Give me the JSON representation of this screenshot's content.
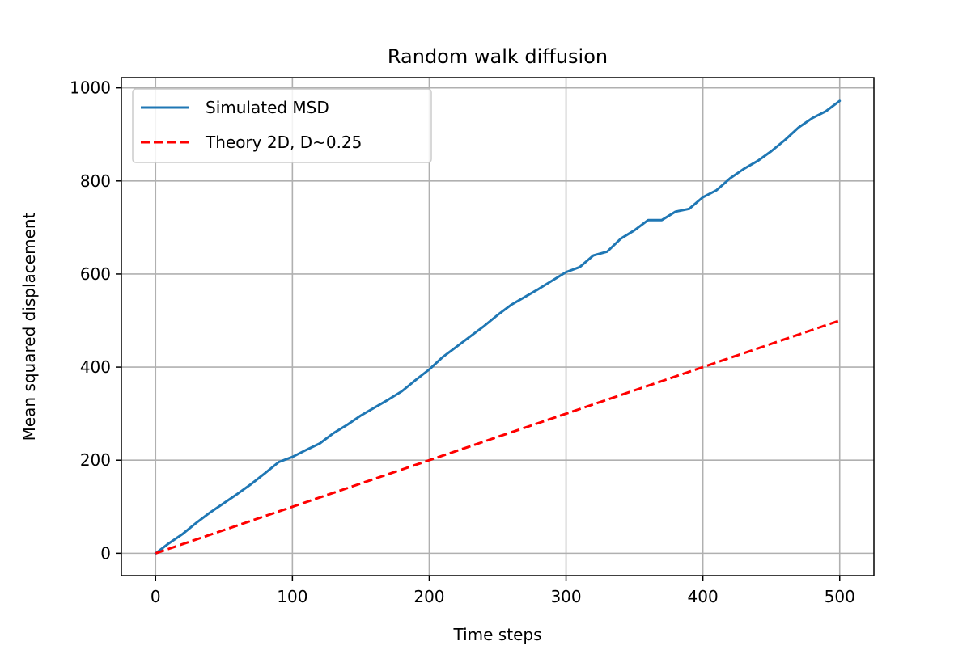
{
  "chart_data": {
    "type": "line",
    "title": "Random walk diffusion",
    "xlabel": "Time steps",
    "ylabel": "Mean squared displacement",
    "xlim": [
      -25,
      525
    ],
    "ylim": [
      -48,
      1022
    ],
    "xticks": [
      0,
      100,
      200,
      300,
      400,
      500
    ],
    "yticks": [
      0,
      200,
      400,
      600,
      800,
      1000
    ],
    "grid": true,
    "legend_position": "upper left",
    "series": [
      {
        "name": "Simulated MSD",
        "color": "#1f77b4",
        "linestyle": "solid",
        "x": [
          0,
          10,
          20,
          30,
          40,
          50,
          60,
          70,
          80,
          90,
          100,
          110,
          120,
          130,
          140,
          150,
          160,
          170,
          180,
          190,
          200,
          210,
          220,
          230,
          240,
          250,
          260,
          270,
          280,
          290,
          300,
          310,
          320,
          330,
          340,
          350,
          360,
          370,
          380,
          390,
          400,
          410,
          420,
          430,
          440,
          450,
          460,
          470,
          480,
          490,
          500
        ],
        "y": [
          0,
          22,
          42,
          66,
          88,
          108,
          128,
          149,
          172,
          196,
          207,
          222,
          236,
          258,
          276,
          296,
          313,
          330,
          348,
          372,
          395,
          422,
          444,
          466,
          488,
          512,
          534,
          551,
          568,
          586,
          604,
          615,
          640,
          648,
          676,
          694,
          716,
          716,
          734,
          740,
          765,
          780,
          806,
          826,
          843,
          864,
          888,
          915,
          935,
          950,
          972
        ]
      },
      {
        "name": "Theory 2D, D~0.25",
        "color": "#ff0000",
        "linestyle": "dashed",
        "x": [
          0,
          500
        ],
        "y": [
          0,
          500
        ]
      }
    ]
  }
}
